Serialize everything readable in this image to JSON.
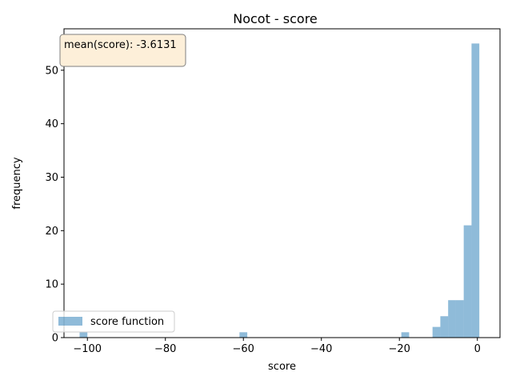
{
  "chart_data": {
    "type": "histogram",
    "title": "Nocot - score",
    "xlabel": "score",
    "ylabel": "frequency",
    "xlim": [
      -106.0,
      5.8
    ],
    "ylim": [
      0,
      57.75
    ],
    "xticks": [
      -100,
      -80,
      -60,
      -40,
      -20,
      0
    ],
    "yticks": [
      0,
      10,
      20,
      30,
      40,
      50
    ],
    "grid": false,
    "legend": {
      "placement": "lower-left",
      "entries": [
        "score function"
      ]
    },
    "annotation": "mean(score): -3.6131",
    "colors": {
      "bars": "#1f77b4",
      "annotation_fill": "#fdefd9",
      "annotation_edge": "#7f7f7f"
    },
    "series": [
      {
        "name": "score function",
        "bins": [
          {
            "x0": -102.0,
            "x1": -100.0,
            "count": 1
          },
          {
            "x0": -61.0,
            "x1": -59.0,
            "count": 1
          },
          {
            "x0": -19.5,
            "x1": -17.5,
            "count": 1
          },
          {
            "x0": -11.5,
            "x1": -9.5,
            "count": 2
          },
          {
            "x0": -9.5,
            "x1": -7.5,
            "count": 4
          },
          {
            "x0": -7.5,
            "x1": -5.5,
            "count": 7
          },
          {
            "x0": -5.5,
            "x1": -3.5,
            "count": 7
          },
          {
            "x0": -3.5,
            "x1": -1.5,
            "count": 21
          },
          {
            "x0": -1.5,
            "x1": 0.5,
            "count": 55
          }
        ]
      }
    ]
  }
}
